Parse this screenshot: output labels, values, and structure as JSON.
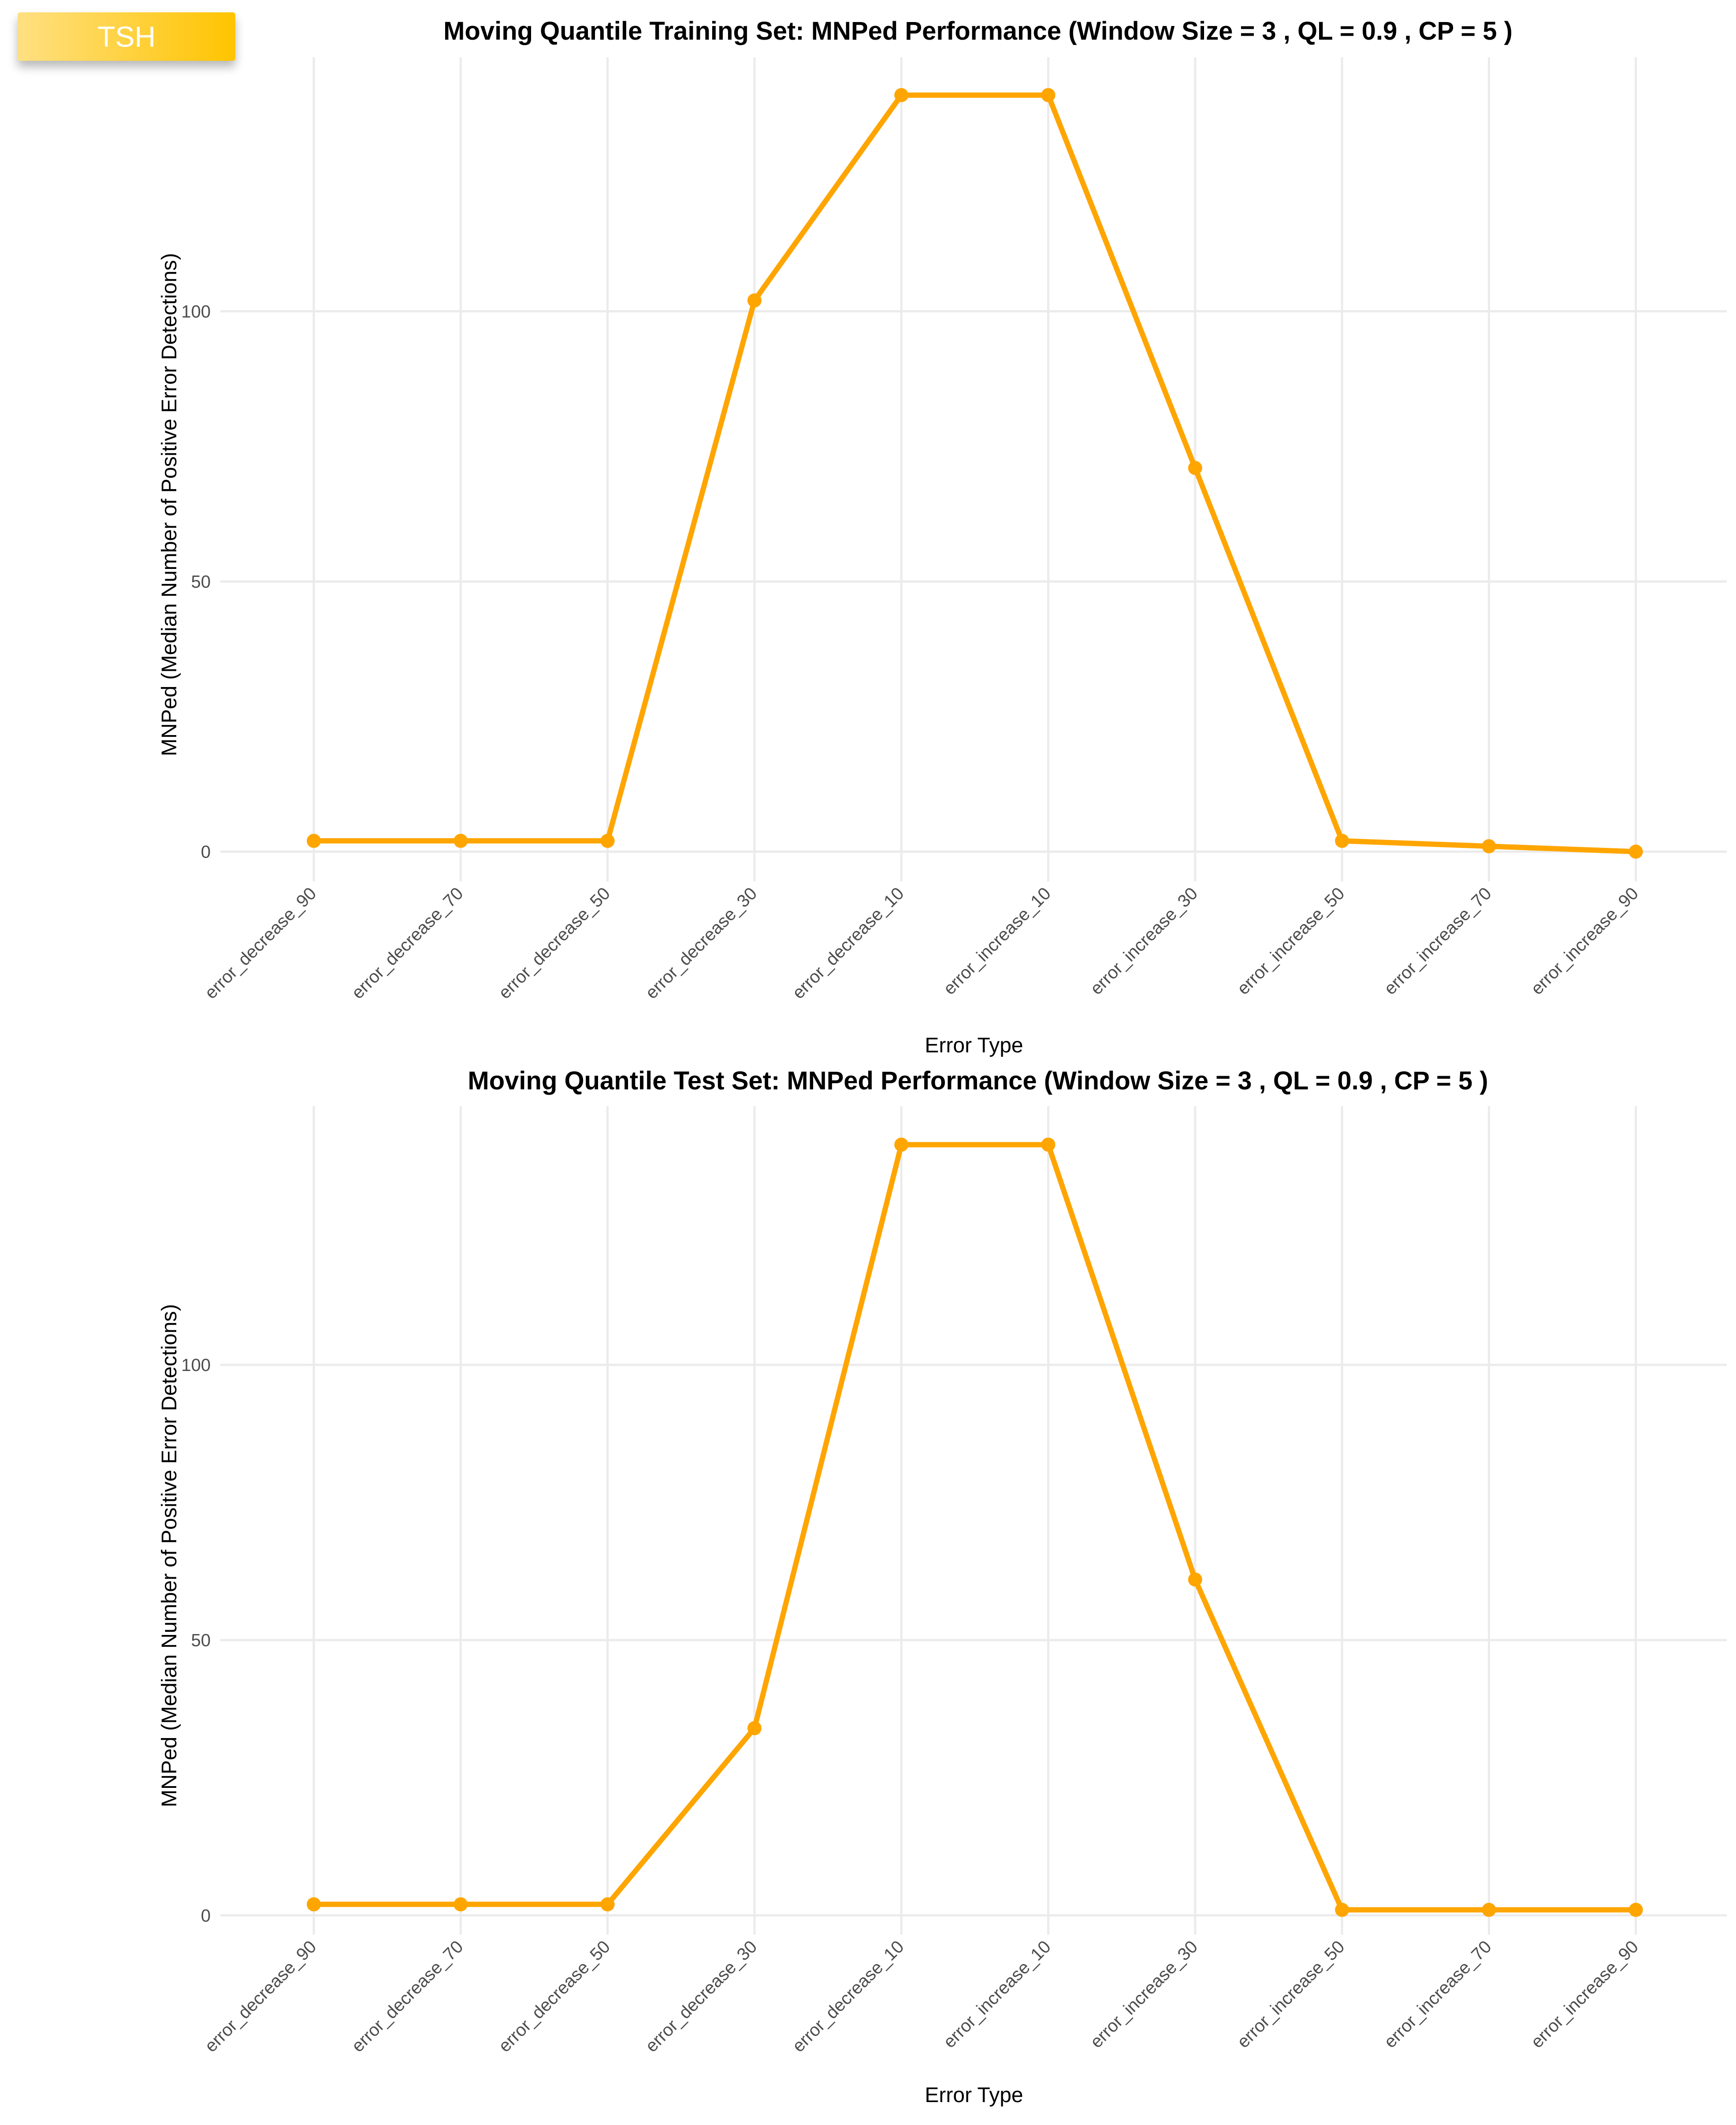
{
  "badge": {
    "label": "TSH"
  },
  "colors": {
    "line": "#FFA500",
    "grid": "#EBEBEB",
    "text": "#000000",
    "tick": "#4D4D4D",
    "badge_from": "#FFE082",
    "badge_to": "#FFC400"
  },
  "chart_data": [
    {
      "type": "line",
      "title": "Moving Quantile Training Set: MNPed Performance (Window Size = 3 , QL = 0.9 , CP = 5 )",
      "xlabel": "Error Type",
      "ylabel": "MNPed (Median Number of Positive Error Detections)",
      "categories": [
        "error_decrease_90",
        "error_decrease_70",
        "error_decrease_50",
        "error_decrease_30",
        "error_decrease_10",
        "error_increase_10",
        "error_increase_30",
        "error_increase_50",
        "error_increase_70",
        "error_increase_90"
      ],
      "values": [
        2,
        2,
        2,
        102,
        140,
        140,
        71,
        2,
        1,
        0
      ],
      "yticks": [
        0,
        50,
        100
      ],
      "ylim": [
        -5.5,
        147
      ],
      "grid": true,
      "legend": "none"
    },
    {
      "type": "line",
      "title": "Moving Quantile Test Set: MNPed Performance (Window Size = 3 , QL = 0.9 , CP = 5 )",
      "xlabel": "Error Type",
      "ylabel": "MNPed (Median Number of Positive Error Detections)",
      "categories": [
        "error_decrease_90",
        "error_decrease_70",
        "error_decrease_50",
        "error_decrease_30",
        "error_decrease_10",
        "error_increase_10",
        "error_increase_30",
        "error_increase_50",
        "error_increase_70",
        "error_increase_90"
      ],
      "values": [
        2,
        2,
        2,
        34,
        140,
        140,
        61,
        1,
        1,
        1
      ],
      "yticks": [
        0,
        50,
        100
      ],
      "ylim": [
        -3.5,
        147
      ],
      "grid": true,
      "legend": "none"
    }
  ]
}
